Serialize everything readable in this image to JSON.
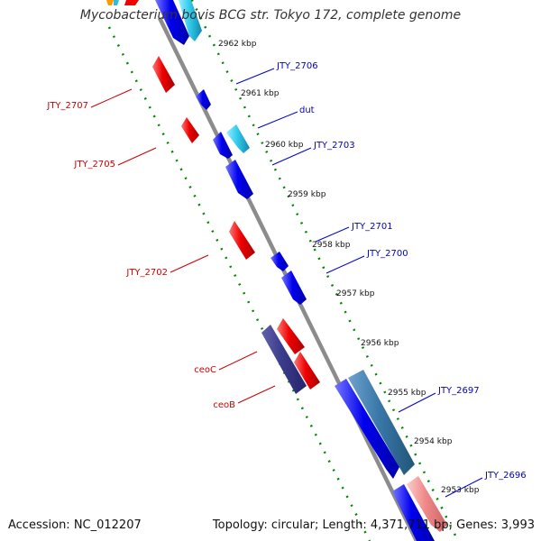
{
  "title": "Mycobacterium bovis BCG str. Tokyo 172, complete genome",
  "footer": {
    "accession": "Accession: NC_012207",
    "topology": "Topology: circular; Length: 4,371,711 bp; Genes: 3,993"
  },
  "colors": {
    "backbone": "#888888",
    "forward_gene": "#0000ee",
    "forward_gene_alt": "#33bbdd",
    "forward_gene_long": "#3377aa",
    "reverse_gene": "#ee0000",
    "reverse_gene_alt": "#f08080",
    "operon_gene": "#3b3b8c",
    "ruler": "#007700",
    "label_forward": "#0000cc",
    "label_reverse": "#cc0000"
  },
  "scale_ticks": [
    "2962 kbp",
    "2961 kbp",
    "2960 kbp",
    "2959 kbp",
    "2958 kbp",
    "2957 kbp",
    "2956 kbp",
    "2955 kbp",
    "2954 kbp",
    "2953 kbp"
  ],
  "gene_labels_forward": [
    "JTY_2706",
    "dut",
    "JTY_2703",
    "JTY_2701",
    "JTY_2700",
    "JTY_2697",
    "JTY_2696"
  ],
  "gene_labels_reverse": [
    "JTY_2707",
    "JTY_2705",
    "JTY_2702",
    "ceoC",
    "ceoB"
  ]
}
